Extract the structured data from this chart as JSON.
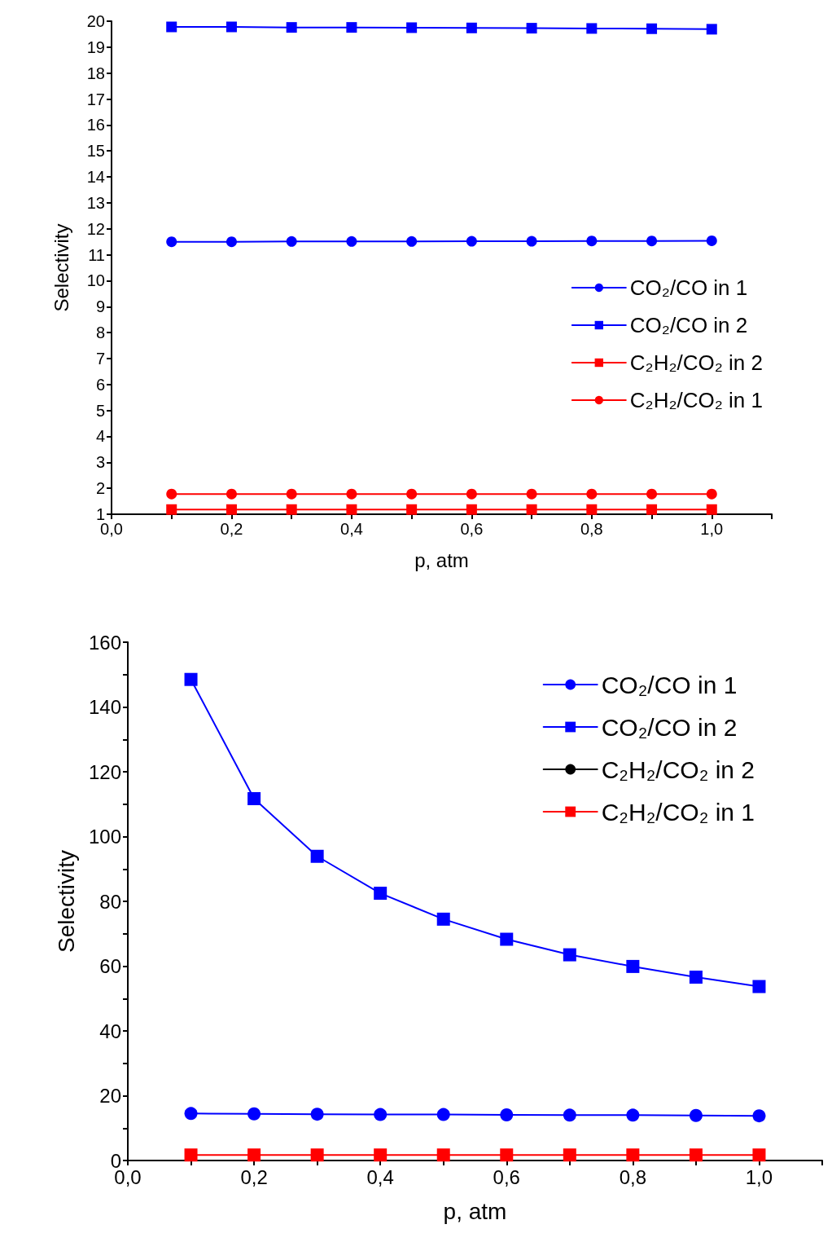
{
  "chart_data": [
    {
      "type": "line",
      "xlabel": "p, atm",
      "ylabel": "Selectivity",
      "x": [
        0.1,
        0.2,
        0.3,
        0.4,
        0.5,
        0.6,
        0.7,
        0.8,
        0.9,
        1.0
      ],
      "series": [
        {
          "name": "CO₂/CO in 1",
          "color": "#0000ff",
          "marker": "circle",
          "values": [
            11.5,
            11.5,
            11.51,
            11.51,
            11.51,
            11.52,
            11.52,
            11.53,
            11.53,
            11.54
          ]
        },
        {
          "name": "CO₂/CO in 2",
          "color": "#0000ff",
          "marker": "square",
          "values": [
            19.78,
            19.78,
            19.76,
            19.76,
            19.75,
            19.74,
            19.73,
            19.72,
            19.71,
            19.69
          ]
        },
        {
          "name": "C₂H₂/CO₂ in 2",
          "color": "#ff0000",
          "marker": "square",
          "values": [
            1.18,
            1.18,
            1.18,
            1.18,
            1.18,
            1.18,
            1.18,
            1.18,
            1.18,
            1.18
          ]
        },
        {
          "name": "C₂H₂/CO₂ in 1",
          "color": "#ff0000",
          "marker": "circle",
          "values": [
            1.78,
            1.78,
            1.78,
            1.78,
            1.78,
            1.78,
            1.78,
            1.78,
            1.78,
            1.78
          ]
        }
      ],
      "xlim": [
        0,
        1.1
      ],
      "xticks": [
        {
          "value": 0,
          "label": "0,0"
        },
        {
          "value": 0.1,
          "label": null
        },
        {
          "value": 0.2,
          "label": "0,2"
        },
        {
          "value": 0.3,
          "label": null
        },
        {
          "value": 0.4,
          "label": "0,4"
        },
        {
          "value": 0.5,
          "label": null
        },
        {
          "value": 0.6,
          "label": "0,6"
        },
        {
          "value": 0.7,
          "label": null
        },
        {
          "value": 0.8,
          "label": "0,8"
        },
        {
          "value": 0.9,
          "label": null
        },
        {
          "value": 1.0,
          "label": "1,0"
        },
        {
          "value": 1.1,
          "label": null
        }
      ],
      "ylim": [
        1,
        20
      ],
      "yticks": [
        1,
        2,
        3,
        4,
        5,
        6,
        7,
        8,
        9,
        10,
        11,
        12,
        13,
        14,
        15,
        16,
        17,
        18,
        19,
        20
      ],
      "grid": false,
      "legend": "right",
      "line_style": "solid"
    },
    {
      "type": "line",
      "xlabel": "p, atm",
      "ylabel": "Selectivity",
      "x": [
        0.1,
        0.2,
        0.3,
        0.4,
        0.5,
        0.6,
        0.7,
        0.8,
        0.9,
        1.0
      ],
      "series": [
        {
          "name": "CO₂/CO in 1",
          "color": "#0000ff",
          "marker": "circle",
          "values": [
            14.5,
            14.4,
            14.3,
            14.2,
            14.2,
            14.1,
            14.0,
            14.0,
            13.9,
            13.8
          ]
        },
        {
          "name": "CO₂/CO in 2",
          "color": "#0000ff",
          "marker": "square",
          "values": [
            148.5,
            111.7,
            93.9,
            82.5,
            74.5,
            68.3,
            63.5,
            59.9,
            56.6,
            53.7
          ]
        },
        {
          "name": "C₂H₂/CO₂ in 2",
          "color": "#000000",
          "marker": "circle",
          "values": [
            null,
            null,
            null,
            null,
            null,
            null,
            null,
            null,
            null,
            null
          ]
        },
        {
          "name": "C₂H₂/CO₂ in 1",
          "color": "#ff0000",
          "marker": "square",
          "values": [
            1.7,
            1.7,
            1.7,
            1.7,
            1.7,
            1.7,
            1.7,
            1.7,
            1.7,
            1.7
          ]
        }
      ],
      "xlim": [
        0,
        1.1
      ],
      "xticks": [
        {
          "value": 0,
          "label": "0,0"
        },
        {
          "value": 0.1,
          "label": null
        },
        {
          "value": 0.2,
          "label": "0,2"
        },
        {
          "value": 0.3,
          "label": null
        },
        {
          "value": 0.4,
          "label": "0,4"
        },
        {
          "value": 0.5,
          "label": null
        },
        {
          "value": 0.6,
          "label": "0,6"
        },
        {
          "value": 0.7,
          "label": null
        },
        {
          "value": 0.8,
          "label": "0,8"
        },
        {
          "value": 0.9,
          "label": null
        },
        {
          "value": 1.0,
          "label": "1,0"
        },
        {
          "value": 1.1,
          "label": null
        }
      ],
      "ylim": [
        0,
        160
      ],
      "yticks": [
        0,
        {
          "value": 10,
          "label": null
        },
        20,
        {
          "value": 30,
          "label": null
        },
        40,
        {
          "value": 50,
          "label": null
        },
        60,
        {
          "value": 70,
          "label": null
        },
        80,
        {
          "value": 90,
          "label": null
        },
        100,
        {
          "value": 110,
          "label": null
        },
        120,
        {
          "value": 130,
          "label": null
        },
        140,
        {
          "value": 150,
          "label": null
        },
        160
      ],
      "grid": false,
      "legend": "top right",
      "line_style": "solid"
    }
  ]
}
